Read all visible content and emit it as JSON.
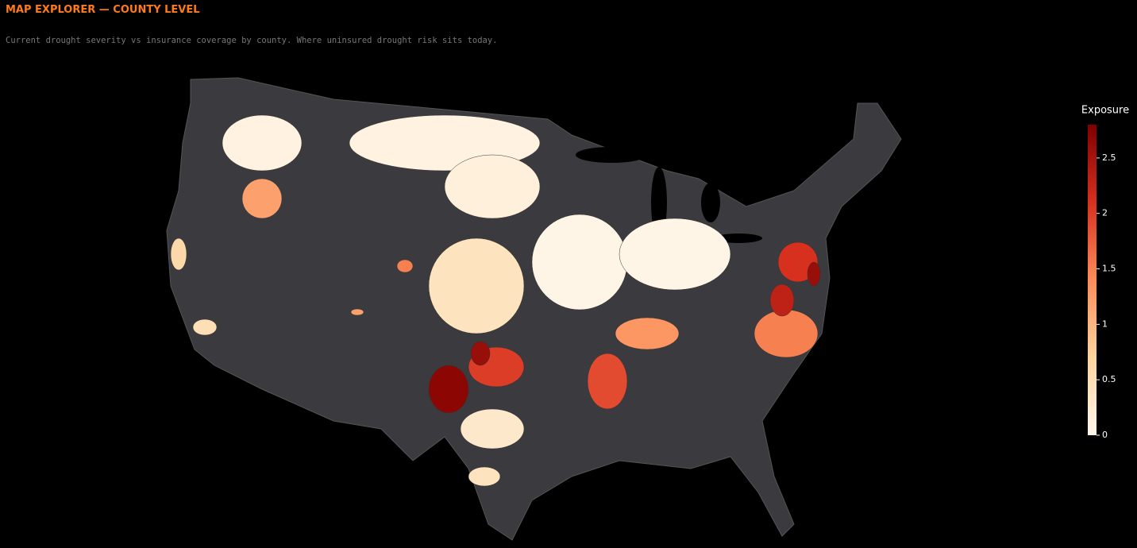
{
  "header": {
    "title": "MAP EXPLORER — COUNTY LEVEL",
    "subtitle": "Current drought severity vs insurance coverage by county. Where uninsured drought risk sits today."
  },
  "chart_data": {
    "type": "choropleth",
    "colorbar_title": "Exposure",
    "zlim": [
      0,
      2.8
    ],
    "zticks": [
      0,
      0.5,
      1,
      1.5,
      2,
      2.5
    ],
    "colorscale": [
      "#fff7ec",
      "#fdd49e",
      "#fc8d59",
      "#d7301f",
      "#7f0000"
    ],
    "no_data_color": "#3a3a3f",
    "values": [
      0.1,
      0.15,
      0.1,
      1.2,
      0.4,
      0.05,
      0.05,
      2.7,
      2.0,
      2.6,
      0.3,
      0.4,
      1.3,
      1.9,
      1.5,
      2.3,
      2.1,
      2.6,
      0.5,
      0.6,
      1.5,
      1.2
    ]
  }
}
